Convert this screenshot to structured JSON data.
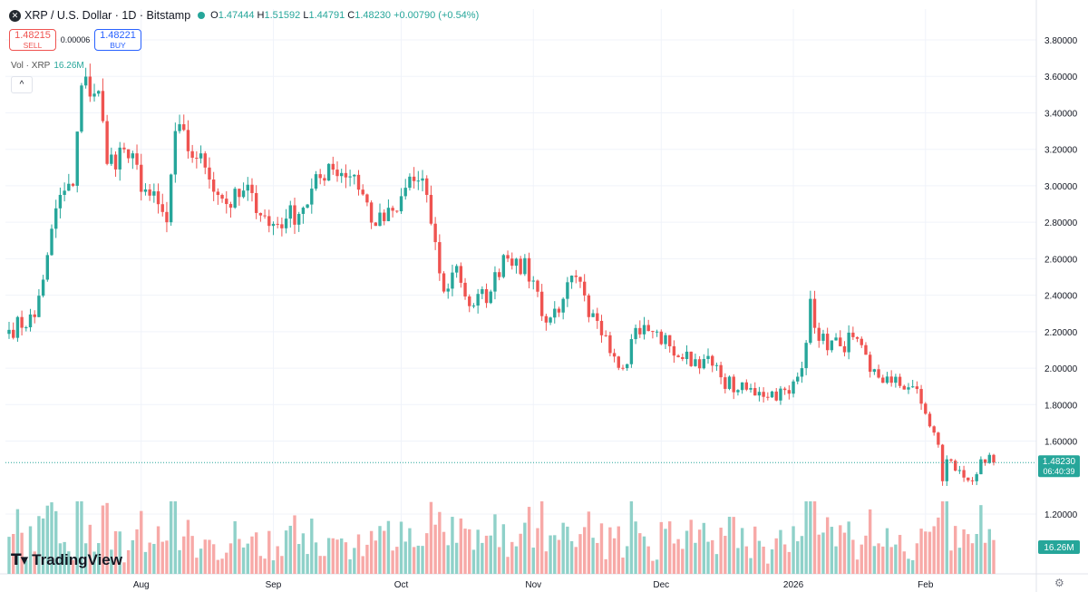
{
  "header": {
    "symbol": "XRP / U.S. Dollar · 1D · Bitstamp",
    "o_label": "O",
    "o": "1.47444",
    "h_label": "H",
    "h": "1.51592",
    "l_label": "L",
    "l": "1.44791",
    "c_label": "C",
    "c": "1.48230",
    "change": "+0.00790 (+0.54%)"
  },
  "trade": {
    "sell_price": "1.48215",
    "sell_label": "SELL",
    "spread": "0.00006",
    "buy_price": "1.48221",
    "buy_label": "BUY"
  },
  "volume_legend": {
    "label": "Vol · XRP",
    "value": "16.26M"
  },
  "collapse_label": "^",
  "logo": "TradingView",
  "settings_icon": "gear-icon",
  "colors": {
    "up": "#26a69a",
    "down": "#ef5350",
    "up_vol": "#8fd1c9",
    "down_vol": "#f7a9a7",
    "grid": "#f0f3fa"
  },
  "chart_data": {
    "type": "candlestick",
    "timeframe": "1D",
    "x_range": [
      "2025-07-01",
      "2026-02-17"
    ],
    "y_range": [
      1.05,
      3.9
    ],
    "y_ticks": [
      3.8,
      3.6,
      3.4,
      3.2,
      3.0,
      2.8,
      2.6,
      2.4,
      2.2,
      2.0,
      1.8,
      1.6,
      1.2
    ],
    "y_tick_labels": [
      "3.80000",
      "3.60000",
      "3.40000",
      "3.20000",
      "3.00000",
      "2.80000",
      "2.60000",
      "2.40000",
      "2.20000",
      "2.00000",
      "1.80000",
      "1.60000",
      "1.20000"
    ],
    "x_tick_labels": [
      {
        "date": "2025-08-01",
        "label": "Aug"
      },
      {
        "date": "2025-09-01",
        "label": "Sep"
      },
      {
        "date": "2025-10-01",
        "label": "Oct"
      },
      {
        "date": "2025-11-01",
        "label": "Nov"
      },
      {
        "date": "2025-12-01",
        "label": "Dec"
      },
      {
        "date": "2026-01-01",
        "label": "2026"
      },
      {
        "date": "2026-02-01",
        "label": "Feb"
      }
    ],
    "last_price": {
      "value": 1.4823,
      "label": "1.48230",
      "countdown": "06:40:39"
    },
    "last_volume_label": "16.26M",
    "anchor_closes": [
      [
        "2025-07-01",
        2.21
      ],
      [
        "2025-07-07",
        2.28
      ],
      [
        "2025-07-10",
        2.62
      ],
      [
        "2025-07-13",
        2.95
      ],
      [
        "2025-07-16",
        3.0
      ],
      [
        "2025-07-18",
        3.55
      ],
      [
        "2025-07-22",
        3.52
      ],
      [
        "2025-07-24",
        3.12
      ],
      [
        "2025-07-28",
        3.2
      ],
      [
        "2025-08-02",
        2.98
      ],
      [
        "2025-08-07",
        2.8
      ],
      [
        "2025-08-09",
        3.3
      ],
      [
        "2025-08-14",
        3.15
      ],
      [
        "2025-08-16",
        3.1
      ],
      [
        "2025-08-21",
        2.9
      ],
      [
        "2025-08-27",
        2.96
      ],
      [
        "2025-08-31",
        2.78
      ],
      [
        "2025-09-04",
        2.82
      ],
      [
        "2025-09-08",
        2.88
      ],
      [
        "2025-09-14",
        3.12
      ],
      [
        "2025-09-17",
        3.07
      ],
      [
        "2025-09-20",
        3.06
      ],
      [
        "2025-09-25",
        2.78
      ],
      [
        "2025-09-30",
        2.86
      ],
      [
        "2025-10-03",
        3.05
      ],
      [
        "2025-10-07",
        2.95
      ],
      [
        "2025-10-10",
        2.52
      ],
      [
        "2025-10-11",
        2.42
      ],
      [
        "2025-10-14",
        2.56
      ],
      [
        "2025-10-17",
        2.34
      ],
      [
        "2025-10-22",
        2.42
      ],
      [
        "2025-10-25",
        2.62
      ],
      [
        "2025-10-28",
        2.6
      ],
      [
        "2025-11-01",
        2.48
      ],
      [
        "2025-11-04",
        2.25
      ],
      [
        "2025-11-08",
        2.38
      ],
      [
        "2025-11-11",
        2.5
      ],
      [
        "2025-11-14",
        2.28
      ],
      [
        "2025-11-18",
        2.18
      ],
      [
        "2025-11-22",
        2.0
      ],
      [
        "2025-11-25",
        2.22
      ],
      [
        "2025-11-29",
        2.2
      ],
      [
        "2025-12-03",
        2.12
      ],
      [
        "2025-12-06",
        2.05
      ],
      [
        "2025-12-11",
        2.05
      ],
      [
        "2025-12-15",
        1.95
      ],
      [
        "2025-12-19",
        1.88
      ],
      [
        "2025-12-24",
        1.87
      ],
      [
        "2025-12-31",
        1.86
      ],
      [
        "2026-01-03",
        2.0
      ],
      [
        "2026-01-05",
        2.38
      ],
      [
        "2026-01-07",
        2.15
      ],
      [
        "2026-01-12",
        2.12
      ],
      [
        "2026-01-15",
        2.17
      ],
      [
        "2026-01-19",
        1.98
      ],
      [
        "2026-01-24",
        1.92
      ],
      [
        "2026-01-29",
        1.9
      ],
      [
        "2026-02-01",
        1.75
      ],
      [
        "2026-02-04",
        1.58
      ],
      [
        "2026-02-05",
        1.38
      ],
      [
        "2026-02-06",
        1.5
      ],
      [
        "2026-02-10",
        1.4
      ],
      [
        "2026-02-12",
        1.38
      ],
      [
        "2026-02-14",
        1.5
      ],
      [
        "2026-02-17",
        1.4823
      ]
    ]
  }
}
